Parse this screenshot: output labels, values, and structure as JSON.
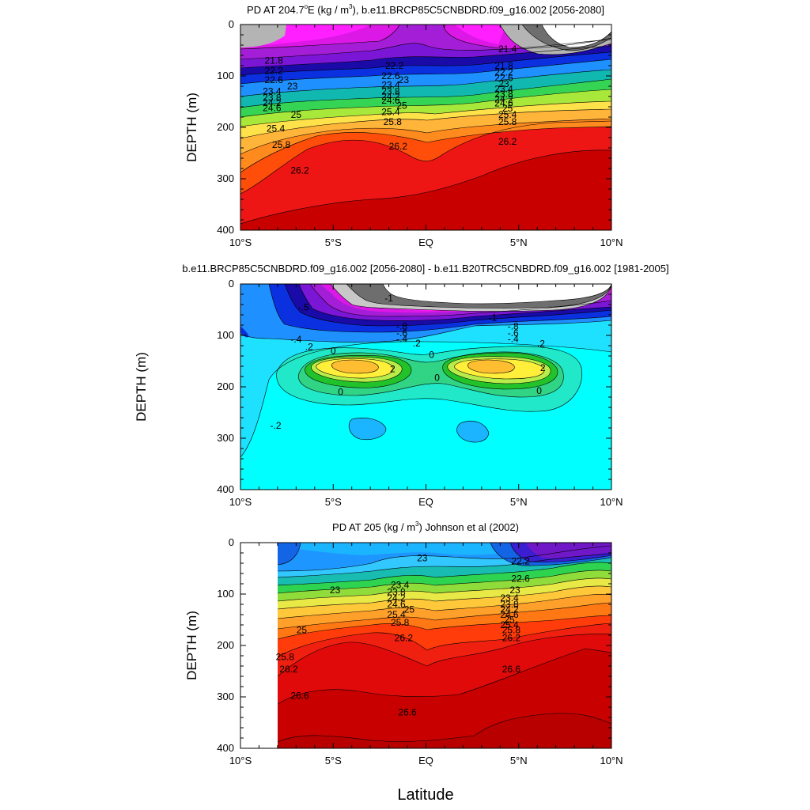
{
  "figure": {
    "xlabel": "Latitude"
  },
  "chart_data": [
    {
      "type": "heatmap",
      "title_main": "PD AT 204.7",
      "title_sup": "o",
      "title_after_sup": "E (kg / m",
      "title_sup2": "3",
      "title_tail": "), b.e11.BRCP85C5CNBDRD.f09_g16.002 [2056-2080]",
      "ylabel": "DEPTH (m)",
      "x_ticks": [
        "10°S",
        "5°S",
        "EQ",
        "5°N",
        "10°N"
      ],
      "x_tick_values": [
        -10,
        -5,
        0,
        5,
        10
      ],
      "y_ticks": [
        "0",
        "100",
        "200",
        "300",
        "400"
      ],
      "y_tick_values": [
        0,
        100,
        200,
        300,
        400
      ],
      "xlim": [
        -10,
        10
      ],
      "ylim": [
        0,
        400
      ],
      "contour_labels": [
        {
          "lat": -8.2,
          "depth": 70,
          "text": "21.8"
        },
        {
          "lat": -8.2,
          "depth": 90,
          "text": "22.2"
        },
        {
          "lat": -8.2,
          "depth": 108,
          "text": "22.6"
        },
        {
          "lat": -7.2,
          "depth": 120,
          "text": "23"
        },
        {
          "lat": -8.3,
          "depth": 130,
          "text": "23.4"
        },
        {
          "lat": -8.3,
          "depth": 142,
          "text": "23.8"
        },
        {
          "lat": -8.3,
          "depth": 152,
          "text": "24.2"
        },
        {
          "lat": -8.3,
          "depth": 162,
          "text": "24.6"
        },
        {
          "lat": -7,
          "depth": 175,
          "text": "25"
        },
        {
          "lat": -8.1,
          "depth": 202,
          "text": "25.4"
        },
        {
          "lat": -7.8,
          "depth": 234,
          "text": "25.8"
        },
        {
          "lat": -6.8,
          "depth": 284,
          "text": "26.2"
        },
        {
          "lat": -1.7,
          "depth": 80,
          "text": "22.2"
        },
        {
          "lat": -1.9,
          "depth": 100,
          "text": "22.6"
        },
        {
          "lat": -1.2,
          "depth": 108,
          "text": "23"
        },
        {
          "lat": -1.9,
          "depth": 118,
          "text": "23.4"
        },
        {
          "lat": -1.9,
          "depth": 130,
          "text": "23.8"
        },
        {
          "lat": -1.9,
          "depth": 140,
          "text": "24.2"
        },
        {
          "lat": -1.9,
          "depth": 148,
          "text": "24.6"
        },
        {
          "lat": -1.3,
          "depth": 158,
          "text": "25"
        },
        {
          "lat": -1.9,
          "depth": 170,
          "text": "25.4"
        },
        {
          "lat": -1.8,
          "depth": 189,
          "text": "25.8"
        },
        {
          "lat": -1.5,
          "depth": 237,
          "text": "26.2"
        },
        {
          "lat": 4.2,
          "depth": 80,
          "text": "21.8"
        },
        {
          "lat": 4.2,
          "depth": 93,
          "text": "22.2"
        },
        {
          "lat": 4.2,
          "depth": 104,
          "text": "22.6"
        },
        {
          "lat": 4.2,
          "depth": 115,
          "text": "23"
        },
        {
          "lat": 4.2,
          "depth": 125,
          "text": "23.4"
        },
        {
          "lat": 4.2,
          "depth": 135,
          "text": "23.8"
        },
        {
          "lat": 4.2,
          "depth": 145,
          "text": "24.2"
        },
        {
          "lat": 4.2,
          "depth": 153,
          "text": "24.6"
        },
        {
          "lat": 4.4,
          "depth": 163,
          "text": "25"
        },
        {
          "lat": 4.4,
          "depth": 175,
          "text": "25.4"
        },
        {
          "lat": 4.4,
          "depth": 189,
          "text": "25.8"
        },
        {
          "lat": 4.4,
          "depth": 228,
          "text": "26.2"
        },
        {
          "lat": 4.4,
          "depth": 48,
          "text": "21.4"
        }
      ]
    },
    {
      "type": "heatmap",
      "title": "b.e11.BRCP85C5CNBDRD.f09_g16.002 [2056-2080] - b.e11.B20TRC5CNBDRD.f09_g16.002 [1981-2005]",
      "ylabel": "DEPTH (m)",
      "x_ticks": [
        "10°S",
        "5°S",
        "EQ",
        "5°N",
        "10°N"
      ],
      "x_tick_values": [
        -10,
        -5,
        0,
        5,
        10
      ],
      "y_ticks": [
        "0",
        "100",
        "200",
        "300",
        "400"
      ],
      "y_tick_values": [
        0,
        100,
        200,
        300,
        400
      ],
      "xlim": [
        -10,
        10
      ],
      "ylim": [
        0,
        400
      ],
      "contour_labels": [
        {
          "lat": -6.6,
          "depth": 45,
          "text": "-.5"
        },
        {
          "lat": -2.0,
          "depth": 28,
          "text": "-1"
        },
        {
          "lat": 3.6,
          "depth": 65,
          "text": "-1"
        },
        {
          "lat": -1.3,
          "depth": 82,
          "text": "-.8"
        },
        {
          "lat": 4.7,
          "depth": 82,
          "text": "-.8"
        },
        {
          "lat": -1.3,
          "depth": 95,
          "text": "-.6"
        },
        {
          "lat": 4.7,
          "depth": 95,
          "text": "-.6"
        },
        {
          "lat": -7,
          "depth": 108,
          "text": "-.4"
        },
        {
          "lat": -1.3,
          "depth": 107,
          "text": "-.4"
        },
        {
          "lat": 4.7,
          "depth": 107,
          "text": "-.4"
        },
        {
          "lat": -6.3,
          "depth": 122,
          "text": ".2"
        },
        {
          "lat": -0.5,
          "depth": 115,
          "text": ".2"
        },
        {
          "lat": 6.2,
          "depth": 116,
          "text": ".2"
        },
        {
          "lat": -5.0,
          "depth": 130,
          "text": "0"
        },
        {
          "lat": 0.3,
          "depth": 138,
          "text": "0"
        },
        {
          "lat": -1.8,
          "depth": 165,
          "text": "2"
        },
        {
          "lat": 6.3,
          "depth": 163,
          "text": "2"
        },
        {
          "lat": 0.6,
          "depth": 182,
          "text": "0"
        },
        {
          "lat": -4.6,
          "depth": 210,
          "text": "0"
        },
        {
          "lat": 6.1,
          "depth": 208,
          "text": "0"
        },
        {
          "lat": -8.1,
          "depth": 275,
          "text": "-.2"
        }
      ]
    },
    {
      "type": "heatmap",
      "title_main": "PD AT 205 (kg / m",
      "title_sup": "3",
      "title_tail": ") Johnson et al (2002)",
      "ylabel": "DEPTH (m)",
      "x_ticks": [
        "10°S",
        "5°S",
        "EQ",
        "5°N",
        "10°N"
      ],
      "x_tick_values": [
        -10,
        -5,
        0,
        5,
        10
      ],
      "y_ticks": [
        "0",
        "100",
        "200",
        "300",
        "400"
      ],
      "y_tick_values": [
        0,
        100,
        200,
        300,
        400
      ],
      "xlim": [
        -10,
        10
      ],
      "ylim": [
        0,
        400
      ],
      "data_lat_start": -8,
      "contour_labels": [
        {
          "lat": -0.2,
          "depth": 30,
          "text": "23"
        },
        {
          "lat": 5.1,
          "depth": 36,
          "text": "22.2"
        },
        {
          "lat": 5.1,
          "depth": 70,
          "text": "22.6"
        },
        {
          "lat": 4.8,
          "depth": 92,
          "text": "23"
        },
        {
          "lat": -4.9,
          "depth": 92,
          "text": "23"
        },
        {
          "lat": -1.4,
          "depth": 82,
          "text": "23.4"
        },
        {
          "lat": -1.6,
          "depth": 96,
          "text": "23.8"
        },
        {
          "lat": -1.6,
          "depth": 108,
          "text": "24.2"
        },
        {
          "lat": -1.6,
          "depth": 120,
          "text": "24.6"
        },
        {
          "lat": -0.9,
          "depth": 130,
          "text": "25"
        },
        {
          "lat": -1.6,
          "depth": 140,
          "text": "25.4"
        },
        {
          "lat": -1.4,
          "depth": 155,
          "text": "25.8"
        },
        {
          "lat": -1.2,
          "depth": 185,
          "text": "26.2"
        },
        {
          "lat": 4.5,
          "depth": 108,
          "text": "23.4"
        },
        {
          "lat": 4.5,
          "depth": 120,
          "text": "23.8"
        },
        {
          "lat": 4.5,
          "depth": 130,
          "text": "24.2"
        },
        {
          "lat": 4.5,
          "depth": 140,
          "text": "24.6"
        },
        {
          "lat": 4.5,
          "depth": 150,
          "text": "25"
        },
        {
          "lat": 4.5,
          "depth": 160,
          "text": "25.4"
        },
        {
          "lat": 4.6,
          "depth": 170,
          "text": "25.8"
        },
        {
          "lat": 4.6,
          "depth": 185,
          "text": "26.2"
        },
        {
          "lat": -6.7,
          "depth": 170,
          "text": "25"
        },
        {
          "lat": -7.6,
          "depth": 222,
          "text": "25.8"
        },
        {
          "lat": -7.4,
          "depth": 246,
          "text": "26.2"
        },
        {
          "lat": -6.8,
          "depth": 298,
          "text": "26.6"
        },
        {
          "lat": -1.0,
          "depth": 330,
          "text": "26.6"
        },
        {
          "lat": 4.6,
          "depth": 246,
          "text": "26.6"
        }
      ]
    }
  ]
}
